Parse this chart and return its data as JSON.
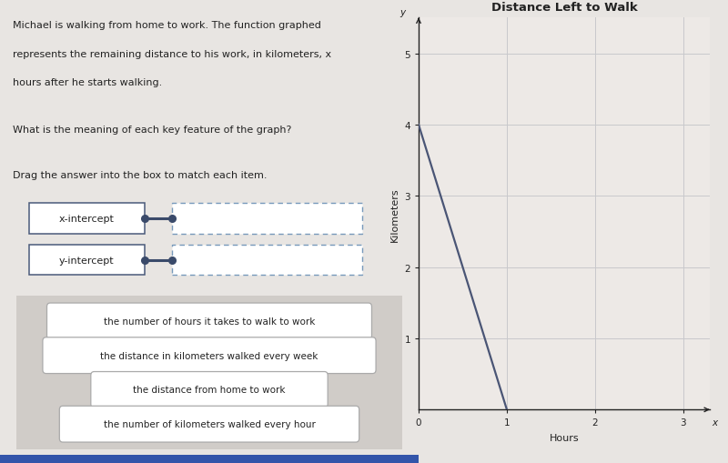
{
  "graph_title": "Distance Left to Walk",
  "xlabel": "Hours",
  "ylabel": "Kilometers",
  "x_label_axis": "x",
  "y_label_axis": "y",
  "xlim": [
    0,
    3.3
  ],
  "ylim": [
    0,
    5.5
  ],
  "xticks": [
    0,
    1,
    2,
    3
  ],
  "yticks": [
    1,
    2,
    3,
    4,
    5
  ],
  "line_x": [
    0,
    1
  ],
  "line_y": [
    4,
    0
  ],
  "line_color": "#4a5575",
  "line_width": 1.6,
  "grid_color": "#c8c8cc",
  "bg_color": "#e8e5e2",
  "plot_bg_color": "#ede9e6",
  "text_color": "#222222",
  "problem_text_1": "Michael is walking from home to work. The function graphed",
  "problem_text_2": "represents the remaining distance to his work, in kilometers, x",
  "problem_text_3": "hours after he starts walking.",
  "question_text": "What is the meaning of each key feature of the graph?",
  "drag_text": "Drag the answer into the box to match each item.",
  "item1_label": "x-intercept",
  "item2_label": "y-intercept",
  "answer1": "the number of hours it takes to walk to work",
  "answer2": "the distance in kilometers walked every week",
  "answer3": "the distance from home to work",
  "answer4": "the number of kilometers walked every hour",
  "connector_color": "#3a4a6a",
  "box_edge_color": "#4a5a7a",
  "dashed_box_color": "#7799bb",
  "answer_border_color": "#aaaaaa",
  "font_size_text": 8.0,
  "font_size_title": 9.5,
  "font_size_axis": 7.5,
  "font_size_item": 8.0,
  "font_size_answer": 7.5,
  "bottom_bar_color": "#3355aa"
}
